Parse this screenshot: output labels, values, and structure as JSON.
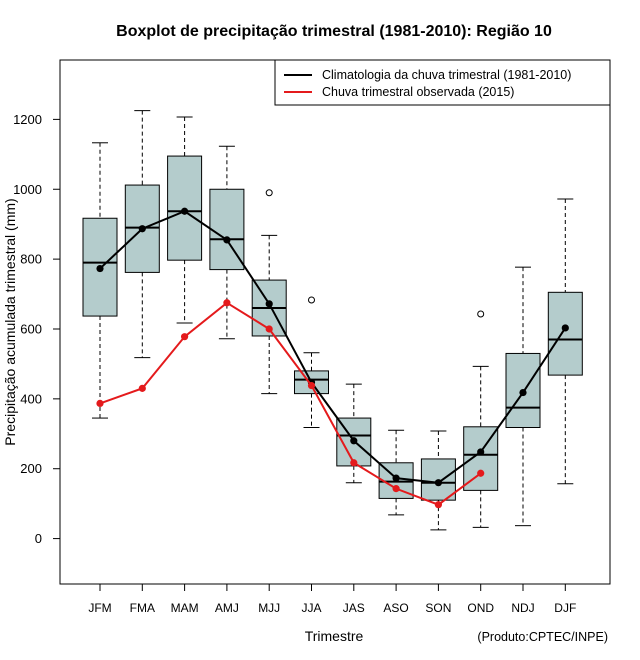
{
  "chart_data": {
    "type": "boxplot",
    "title": "Boxplot de precipitação trimestral (1981-2010): Região 10",
    "xlabel": "Trimestre",
    "ylabel": "Precipitação acumulada trimestral (mm)",
    "credit": "(Produto:CPTEC/INPE)",
    "ylim": [
      -130,
      1370
    ],
    "yticks": [
      0,
      200,
      400,
      600,
      800,
      1000,
      1200
    ],
    "categories": [
      "JFM",
      "FMA",
      "MAM",
      "AMJ",
      "MJJ",
      "JJA",
      "JAS",
      "ASO",
      "SON",
      "OND",
      "NDJ",
      "DJF"
    ],
    "boxes": [
      {
        "whisker_low": 345,
        "q1": 637,
        "median": 790,
        "q3": 917,
        "whisker_high": 1133,
        "outliers": []
      },
      {
        "whisker_low": 518,
        "q1": 762,
        "median": 890,
        "q3": 1012,
        "whisker_high": 1225,
        "outliers": []
      },
      {
        "whisker_low": 617,
        "q1": 797,
        "median": 937,
        "q3": 1095,
        "whisker_high": 1207,
        "outliers": []
      },
      {
        "whisker_low": 572,
        "q1": 770,
        "median": 857,
        "q3": 1000,
        "whisker_high": 1123,
        "outliers": []
      },
      {
        "whisker_low": 415,
        "q1": 580,
        "median": 660,
        "q3": 740,
        "whisker_high": 868,
        "outliers": [
          990
        ]
      },
      {
        "whisker_low": 318,
        "q1": 415,
        "median": 455,
        "q3": 480,
        "whisker_high": 532,
        "outliers": [
          683
        ]
      },
      {
        "whisker_low": 160,
        "q1": 208,
        "median": 295,
        "q3": 345,
        "whisker_high": 442,
        "outliers": []
      },
      {
        "whisker_low": 68,
        "q1": 115,
        "median": 163,
        "q3": 217,
        "whisker_high": 310,
        "outliers": []
      },
      {
        "whisker_low": 25,
        "q1": 110,
        "median": 160,
        "q3": 228,
        "whisker_high": 308,
        "outliers": []
      },
      {
        "whisker_low": 32,
        "q1": 138,
        "median": 240,
        "q3": 320,
        "whisker_high": 493,
        "outliers": [
          643
        ]
      },
      {
        "whisker_low": 37,
        "q1": 318,
        "median": 375,
        "q3": 530,
        "whisker_high": 777,
        "outliers": []
      },
      {
        "whisker_low": 157,
        "q1": 468,
        "median": 570,
        "q3": 705,
        "whisker_high": 972,
        "outliers": []
      }
    ],
    "series": [
      {
        "name": "Climatologia da chuva trimestral (1981-2010)",
        "color": "#000000",
        "values": [
          773,
          887,
          937,
          855,
          672,
          447,
          280,
          173,
          160,
          248,
          418,
          603
        ]
      },
      {
        "name": "Chuva trimestral observada (2015)",
        "color": "#e41a1c",
        "values": [
          387,
          430,
          578,
          675,
          600,
          438,
          217,
          143,
          97,
          187,
          null,
          null
        ]
      }
    ],
    "box_fill": "#b4cccc",
    "legend_position": "top-right"
  }
}
